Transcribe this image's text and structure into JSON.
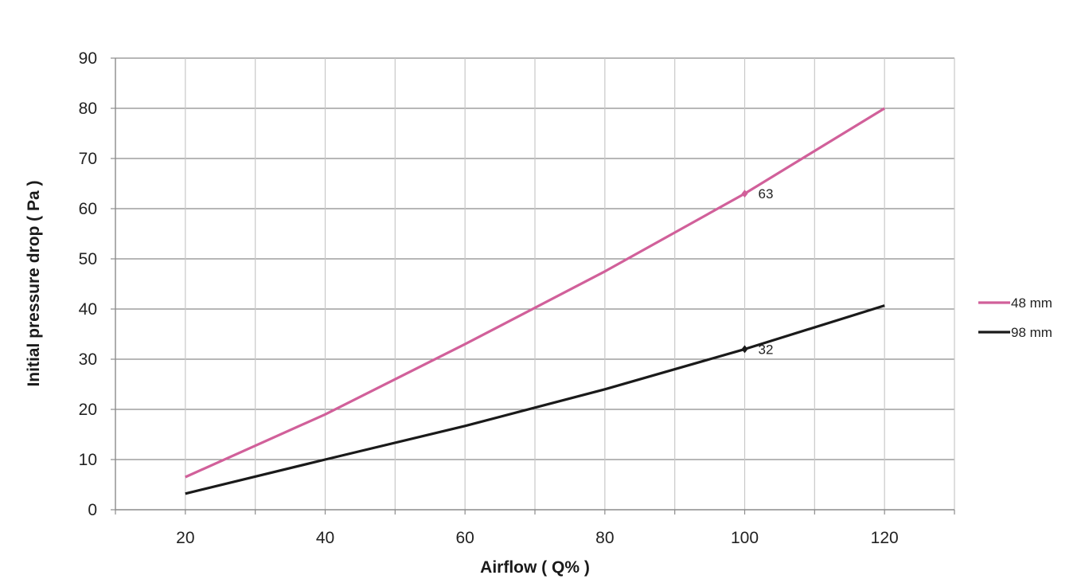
{
  "chart_data": {
    "type": "line",
    "title": "",
    "xlabel": "Airflow ( Q% )",
    "ylabel": "Initial pressure drop ( Pa )",
    "xlim": [
      10,
      130
    ],
    "ylim": [
      0,
      90
    ],
    "x_ticks": [
      20,
      40,
      60,
      80,
      100,
      120
    ],
    "y_ticks": [
      0,
      10,
      20,
      30,
      40,
      50,
      60,
      70,
      80,
      90
    ],
    "x_minor_grid": [
      10,
      20,
      30,
      40,
      50,
      60,
      70,
      80,
      90,
      100,
      110,
      120,
      130
    ],
    "grid": true,
    "legend_position": "right",
    "series": [
      {
        "name": "48 mm",
        "color": "#d1609a",
        "x": [
          20,
          40,
          60,
          80,
          100,
          120
        ],
        "values": [
          6.5,
          19,
          33,
          47.5,
          63,
          80
        ],
        "annotation": {
          "x": 100,
          "y": 63,
          "label": "63"
        }
      },
      {
        "name": "98 mm",
        "color": "#1a1a1a",
        "x": [
          20,
          40,
          60,
          80,
          100,
          120
        ],
        "values": [
          3.2,
          10,
          16.7,
          24,
          32,
          40.7
        ],
        "annotation": {
          "x": 100,
          "y": 32,
          "label": "32"
        }
      }
    ]
  }
}
